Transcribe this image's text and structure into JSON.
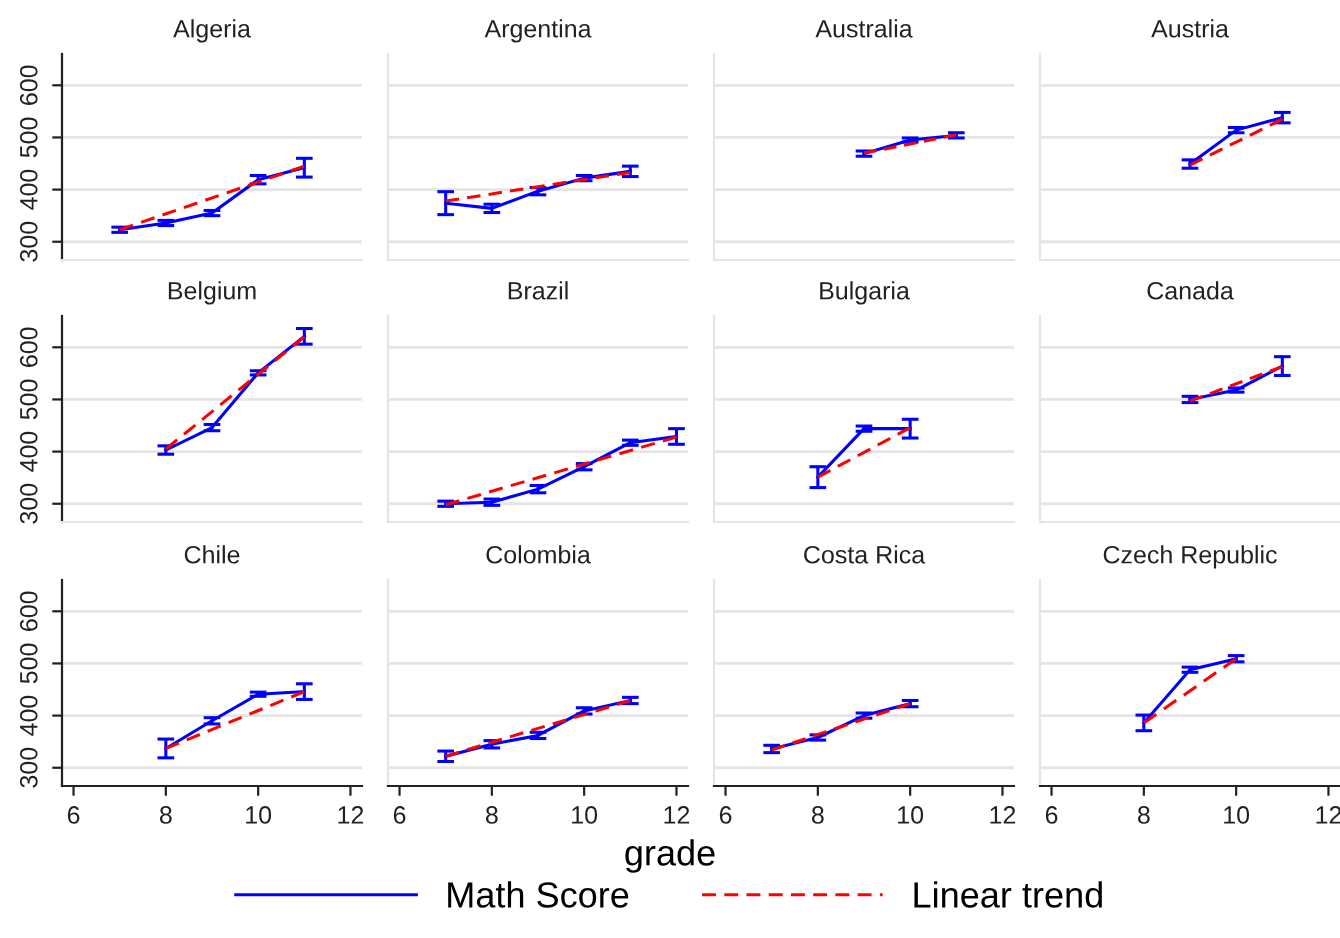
{
  "chart_data": [
    {
      "type": "line",
      "title": "Algeria",
      "xlim": [
        5.75,
        12.25
      ],
      "ylim": [
        265,
        660
      ],
      "xticks": [
        6,
        8,
        10,
        12
      ],
      "yticks": [
        300,
        400,
        500,
        600
      ],
      "grid": "y",
      "tick_labels": "y",
      "legend": "bottom",
      "series": [
        {
          "name": "Math Score",
          "color": "#0000ff",
          "x": [
            7,
            8,
            9,
            10,
            11
          ],
          "values": [
            323,
            336,
            355,
            419,
            442
          ],
          "errors": [
            5,
            5,
            5,
            8,
            18
          ]
        },
        {
          "name": "Linear trend",
          "color": "#ff0000",
          "line_style": "dashed",
          "x": [
            7,
            11
          ],
          "values": [
            323,
            445
          ]
        }
      ]
    },
    {
      "type": "line",
      "title": "Argentina",
      "xlim": [
        5.75,
        12.25
      ],
      "ylim": [
        265,
        660
      ],
      "xticks": [
        6,
        8,
        10,
        12
      ],
      "yticks": [
        300,
        400,
        500,
        600
      ],
      "grid": "y",
      "tick_labels": false,
      "series": [
        {
          "name": "Math Score",
          "color": "#0000ff",
          "x": [
            7,
            8,
            9,
            10,
            11
          ],
          "values": [
            374,
            364,
            397,
            422,
            435
          ],
          "errors": [
            22,
            8,
            7,
            5,
            10
          ]
        },
        {
          "name": "Linear trend",
          "color": "#ff0000",
          "line_style": "dashed",
          "x": [
            7,
            11
          ],
          "values": [
            378,
            433
          ]
        }
      ]
    },
    {
      "type": "line",
      "title": "Australia",
      "xlim": [
        5.75,
        12.25
      ],
      "ylim": [
        265,
        660
      ],
      "xticks": [
        6,
        8,
        10,
        12
      ],
      "yticks": [
        300,
        400,
        500,
        600
      ],
      "grid": "y",
      "tick_labels": false,
      "series": [
        {
          "name": "Math Score",
          "color": "#0000ff",
          "x": [
            9,
            10,
            11
          ],
          "values": [
            469,
            495,
            504
          ],
          "errors": [
            5,
            4,
            5
          ]
        },
        {
          "name": "Linear trend",
          "color": "#ff0000",
          "line_style": "dashed",
          "x": [
            9,
            11
          ],
          "values": [
            470,
            505
          ]
        }
      ]
    },
    {
      "type": "line",
      "title": "Austria",
      "xlim": [
        5.75,
        12.25
      ],
      "ylim": [
        265,
        660
      ],
      "xticks": [
        6,
        8,
        10,
        12
      ],
      "yticks": [
        300,
        400,
        500,
        600
      ],
      "grid": "y",
      "tick_labels": false,
      "series": [
        {
          "name": "Math Score",
          "color": "#0000ff",
          "x": [
            9,
            10,
            11
          ],
          "values": [
            449,
            514,
            538
          ],
          "errors": [
            8,
            5,
            10
          ]
        },
        {
          "name": "Linear trend",
          "color": "#ff0000",
          "line_style": "dashed",
          "x": [
            9,
            11
          ],
          "values": [
            447,
            535
          ]
        }
      ]
    },
    {
      "type": "line",
      "title": "Belgium",
      "xlim": [
        5.75,
        12.25
      ],
      "ylim": [
        265,
        660
      ],
      "xticks": [
        6,
        8,
        10,
        12
      ],
      "yticks": [
        300,
        400,
        500,
        600
      ],
      "grid": "y",
      "tick_labels": "y",
      "series": [
        {
          "name": "Math Score",
          "color": "#0000ff",
          "x": [
            8,
            9,
            10,
            11
          ],
          "values": [
            403,
            446,
            551,
            621
          ],
          "errors": [
            8,
            6,
            4,
            15
          ]
        },
        {
          "name": "Linear trend",
          "color": "#ff0000",
          "line_style": "dashed",
          "x": [
            8,
            11
          ],
          "values": [
            405,
            620
          ]
        }
      ]
    },
    {
      "type": "line",
      "title": "Brazil",
      "xlim": [
        5.75,
        12.25
      ],
      "ylim": [
        265,
        660
      ],
      "xticks": [
        6,
        8,
        10,
        12
      ],
      "yticks": [
        300,
        400,
        500,
        600
      ],
      "grid": "y",
      "tick_labels": false,
      "series": [
        {
          "name": "Math Score",
          "color": "#0000ff",
          "x": [
            7,
            8,
            9,
            10,
            11,
            12
          ],
          "values": [
            300,
            303,
            328,
            371,
            417,
            429
          ],
          "errors": [
            5,
            6,
            7,
            6,
            5,
            15
          ]
        },
        {
          "name": "Linear trend",
          "color": "#ff0000",
          "line_style": "dashed",
          "x": [
            7,
            12
          ],
          "values": [
            298,
            428
          ]
        }
      ]
    },
    {
      "type": "line",
      "title": "Bulgaria",
      "xlim": [
        5.75,
        12.25
      ],
      "ylim": [
        265,
        660
      ],
      "xticks": [
        6,
        8,
        10,
        12
      ],
      "yticks": [
        300,
        400,
        500,
        600
      ],
      "grid": "y",
      "tick_labels": false,
      "series": [
        {
          "name": "Math Score",
          "color": "#0000ff",
          "x": [
            8,
            9,
            10
          ],
          "values": [
            351,
            444,
            444
          ],
          "errors": [
            20,
            5,
            18
          ]
        },
        {
          "name": "Linear trend",
          "color": "#ff0000",
          "line_style": "dashed",
          "x": [
            8,
            10
          ],
          "values": [
            351,
            446
          ]
        }
      ]
    },
    {
      "type": "line",
      "title": "Canada",
      "xlim": [
        5.75,
        12.25
      ],
      "ylim": [
        265,
        660
      ],
      "xticks": [
        6,
        8,
        10,
        12
      ],
      "yticks": [
        300,
        400,
        500,
        600
      ],
      "grid": "y",
      "tick_labels": false,
      "series": [
        {
          "name": "Math Score",
          "color": "#0000ff",
          "x": [
            9,
            10,
            11
          ],
          "values": [
            500,
            518,
            564
          ],
          "errors": [
            6,
            4,
            18
          ]
        },
        {
          "name": "Linear trend",
          "color": "#ff0000",
          "line_style": "dashed",
          "x": [
            9,
            11
          ],
          "values": [
            497,
            563
          ]
        }
      ]
    },
    {
      "type": "line",
      "title": "Chile",
      "xlim": [
        5.75,
        12.25
      ],
      "ylim": [
        265,
        660
      ],
      "xticks": [
        6,
        8,
        10,
        12
      ],
      "yticks": [
        300,
        400,
        500,
        600
      ],
      "grid": "y",
      "series": [
        {
          "name": "Math Score",
          "color": "#0000ff",
          "x": [
            8,
            9,
            10,
            11
          ],
          "values": [
            337,
            390,
            441,
            446
          ],
          "errors": [
            18,
            6,
            4,
            15
          ]
        },
        {
          "name": "Linear trend",
          "color": "#ff0000",
          "line_style": "dashed",
          "x": [
            8,
            11
          ],
          "values": [
            337,
            446
          ]
        }
      ]
    },
    {
      "type": "line",
      "title": "Colombia",
      "xlabel": "grade",
      "xlim": [
        5.75,
        12.25
      ],
      "ylim": [
        265,
        660
      ],
      "xticks": [
        6,
        8,
        10,
        12
      ],
      "yticks": [
        300,
        400,
        500,
        600
      ],
      "grid": "y",
      "tick_labels": "x",
      "series": [
        {
          "name": "Math Score",
          "color": "#0000ff",
          "x": [
            7,
            8,
            9,
            10,
            11
          ],
          "values": [
            322,
            345,
            362,
            409,
            429
          ],
          "errors": [
            10,
            7,
            6,
            6,
            6
          ]
        },
        {
          "name": "Linear trend",
          "color": "#ff0000",
          "line_style": "dashed",
          "x": [
            7,
            11
          ],
          "values": [
            322,
            429
          ]
        }
      ]
    },
    {
      "type": "line",
      "title": "Costa Rica",
      "xlim": [
        5.75,
        12.25
      ],
      "ylim": [
        265,
        660
      ],
      "xticks": [
        6,
        8,
        10,
        12
      ],
      "yticks": [
        300,
        400,
        500,
        600
      ],
      "grid": "y",
      "tick_labels": "x",
      "series": [
        {
          "name": "Math Score",
          "color": "#0000ff",
          "x": [
            7,
            8,
            9,
            10
          ],
          "values": [
            336,
            358,
            400,
            423
          ],
          "errors": [
            7,
            5,
            5,
            6
          ]
        },
        {
          "name": "Linear trend",
          "color": "#ff0000",
          "line_style": "dashed",
          "x": [
            7,
            10
          ],
          "values": [
            334,
            423
          ]
        }
      ]
    },
    {
      "type": "line",
      "title": "Czech Republic",
      "xlim": [
        5.75,
        12.25
      ],
      "ylim": [
        265,
        660
      ],
      "xticks": [
        6,
        8,
        10,
        12
      ],
      "yticks": [
        300,
        400,
        500,
        600
      ],
      "grid": "y",
      "tick_labels": "x",
      "series": [
        {
          "name": "Math Score",
          "color": "#0000ff",
          "x": [
            8,
            9,
            10
          ],
          "values": [
            386,
            488,
            509
          ],
          "errors": [
            15,
            5,
            6
          ]
        },
        {
          "name": "Linear trend",
          "color": "#ff0000",
          "line_style": "dashed",
          "x": [
            8,
            10
          ],
          "values": [
            386,
            509
          ]
        }
      ]
    }
  ]
}
